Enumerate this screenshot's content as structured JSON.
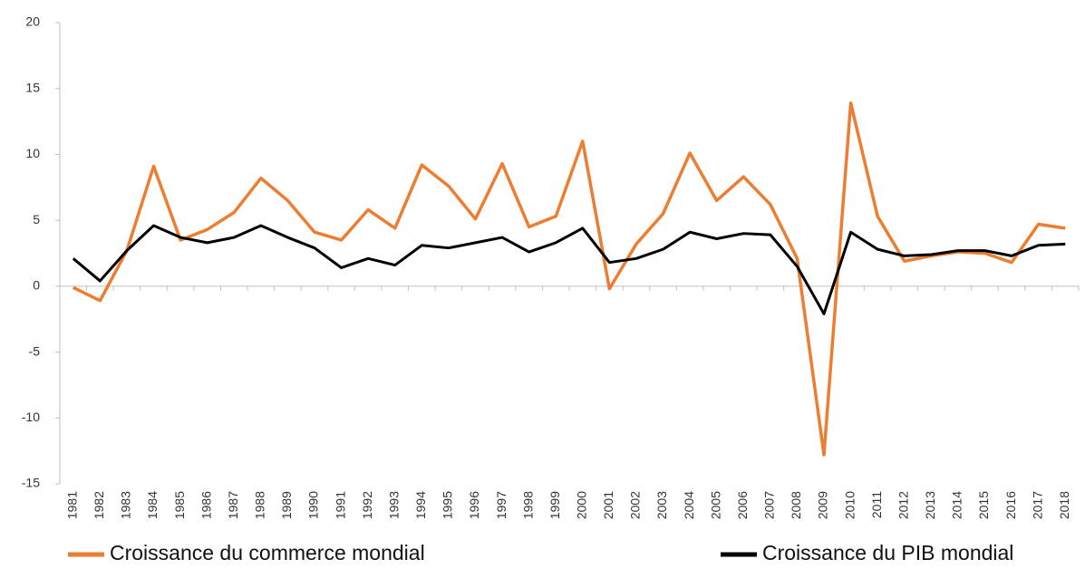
{
  "chart_data": {
    "type": "line",
    "categories": [
      "1981",
      "1982",
      "1983",
      "1984",
      "1985",
      "1986",
      "1987",
      "1988",
      "1989",
      "1990",
      "1991",
      "1992",
      "1993",
      "1994",
      "1995",
      "1996",
      "1997",
      "1998",
      "1999",
      "2000",
      "2001",
      "2002",
      "2003",
      "2004",
      "2005",
      "2006",
      "2007",
      "2008",
      "2009",
      "2010",
      "2011",
      "2012",
      "2013",
      "2014",
      "2015",
      "2016",
      "2017",
      "2018"
    ],
    "series": [
      {
        "name": "Croissance du commerce mondial",
        "color": "#ed7d31",
        "values": [
          -0.1,
          -1.1,
          2.7,
          9.1,
          3.5,
          4.3,
          5.6,
          8.2,
          6.5,
          4.1,
          3.5,
          5.8,
          4.4,
          9.2,
          7.6,
          5.1,
          9.3,
          4.5,
          5.3,
          11.0,
          -0.2,
          3.2,
          5.5,
          10.1,
          6.5,
          8.3,
          6.2,
          2.1,
          -12.8,
          13.9,
          5.3,
          1.9,
          2.3,
          2.6,
          2.5,
          1.8,
          4.7,
          4.4
        ]
      },
      {
        "name": "Croissance du PIB mondial",
        "color": "#000000",
        "values": [
          2.1,
          0.4,
          2.7,
          4.6,
          3.7,
          3.3,
          3.7,
          4.6,
          3.7,
          2.9,
          1.4,
          2.1,
          1.6,
          3.1,
          2.9,
          3.3,
          3.7,
          2.6,
          3.3,
          4.4,
          1.8,
          2.1,
          2.8,
          4.1,
          3.6,
          4.0,
          3.9,
          1.5,
          -2.1,
          4.1,
          2.8,
          2.3,
          2.4,
          2.7,
          2.7,
          2.3,
          3.1,
          3.2
        ]
      }
    ],
    "ylim": [
      -15,
      20
    ],
    "yticks": [
      -15,
      -10,
      -5,
      0,
      5,
      10,
      15,
      20
    ],
    "grid": false,
    "legend": "bottom"
  }
}
